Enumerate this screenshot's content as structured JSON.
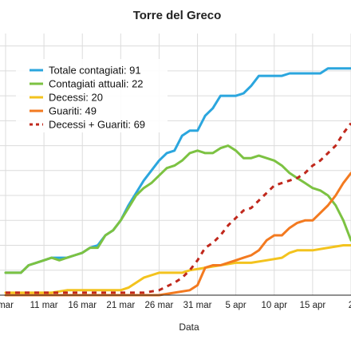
{
  "chart_data": {
    "type": "line",
    "title": "Torre del Greco",
    "xlabel": "Data",
    "ylabel": "",
    "x_tick_labels": [
      "mar",
      "11 mar",
      "16 mar",
      "21 mar",
      "26 mar",
      "31 mar",
      "5 apr",
      "10 apr",
      "15 apr",
      "2"
    ],
    "x_tick_days": [
      0,
      5,
      10,
      15,
      20,
      25,
      30,
      35,
      40,
      45
    ],
    "xlim": [
      0,
      45
    ],
    "ylim": [
      0,
      105
    ],
    "grid": true,
    "legend_position": "top-left",
    "series": [
      {
        "name": "Totale contagiati: 91",
        "color": "#2BA6DE",
        "dash": "solid",
        "x": [
          0,
          2,
          3,
          4,
          5,
          6,
          7,
          8,
          9,
          10,
          11,
          12,
          13,
          14,
          15,
          16,
          17,
          18,
          19,
          20,
          21,
          22,
          23,
          24,
          25,
          26,
          27,
          28,
          29,
          30,
          31,
          32,
          33,
          34,
          35,
          36,
          37,
          38,
          39,
          40,
          41,
          42,
          43,
          44,
          45
        ],
        "y": [
          9,
          9,
          12,
          13,
          14,
          15,
          15,
          15,
          16,
          17,
          19,
          20,
          24,
          26,
          30,
          36,
          41,
          46,
          50,
          54,
          57,
          58,
          64,
          66,
          66,
          72,
          75,
          80,
          80,
          80,
          81,
          84,
          88,
          88,
          88,
          88,
          89,
          89,
          89,
          89,
          89,
          91,
          91,
          91,
          91
        ]
      },
      {
        "name": "Contagiati attuali: 22",
        "color": "#7CC242",
        "dash": "solid",
        "x": [
          0,
          2,
          3,
          4,
          5,
          6,
          7,
          8,
          9,
          10,
          11,
          12,
          13,
          14,
          15,
          16,
          17,
          18,
          19,
          20,
          21,
          22,
          23,
          24,
          25,
          26,
          27,
          28,
          29,
          30,
          31,
          32,
          33,
          34,
          35,
          36,
          37,
          38,
          39,
          40,
          41,
          42,
          43,
          44,
          45
        ],
        "y": [
          9,
          9,
          12,
          13,
          14,
          15,
          14,
          15,
          16,
          17,
          19,
          19,
          24,
          26,
          30,
          35,
          40,
          43,
          45,
          48,
          51,
          52,
          54,
          57,
          58,
          57,
          57,
          59,
          60,
          58,
          55,
          55,
          56,
          55,
          54,
          52,
          49,
          47,
          45,
          43,
          42,
          40,
          36,
          30,
          22
        ]
      },
      {
        "name": "Decessi: 20",
        "color": "#F3C31E",
        "dash": "solid",
        "x": [
          0,
          6,
          8,
          10,
          15,
          16,
          17,
          18,
          19,
          20,
          21,
          23,
          24,
          26,
          28,
          30,
          32,
          34,
          36,
          37,
          38,
          40,
          42,
          44,
          45
        ],
        "y": [
          1,
          1,
          2,
          2,
          2,
          3,
          5,
          7,
          8,
          9,
          9,
          9,
          10,
          11,
          12,
          13,
          13,
          14,
          15,
          17,
          18,
          18,
          19,
          20,
          20
        ]
      },
      {
        "name": "Guariti: 49",
        "color": "#F37A20",
        "dash": "solid",
        "x": [
          0,
          20,
          22,
          24,
          25,
          26,
          27,
          28,
          29,
          30,
          31,
          32,
          33,
          34,
          35,
          36,
          37,
          38,
          39,
          40,
          41,
          42,
          43,
          44,
          45
        ],
        "y": [
          0,
          0,
          1,
          2,
          4,
          11,
          12,
          12,
          13,
          14,
          15,
          16,
          18,
          22,
          24,
          24,
          27,
          29,
          30,
          30,
          33,
          36,
          40,
          45,
          49
        ]
      },
      {
        "name": "Decessi + Guariti: 69",
        "color": "#C0281C",
        "dash": "dashed",
        "x": [
          0,
          18,
          20,
          22,
          23,
          24,
          25,
          26,
          27,
          28,
          29,
          30,
          31,
          32,
          33,
          34,
          35,
          36,
          37,
          38,
          39,
          40,
          41,
          42,
          43,
          44,
          45
        ],
        "y": [
          1,
          1,
          2,
          5,
          7,
          10,
          14,
          19,
          21,
          24,
          28,
          31,
          34,
          35,
          38,
          41,
          44,
          45,
          46,
          47,
          49,
          52,
          54,
          57,
          60,
          65,
          69
        ]
      }
    ]
  }
}
